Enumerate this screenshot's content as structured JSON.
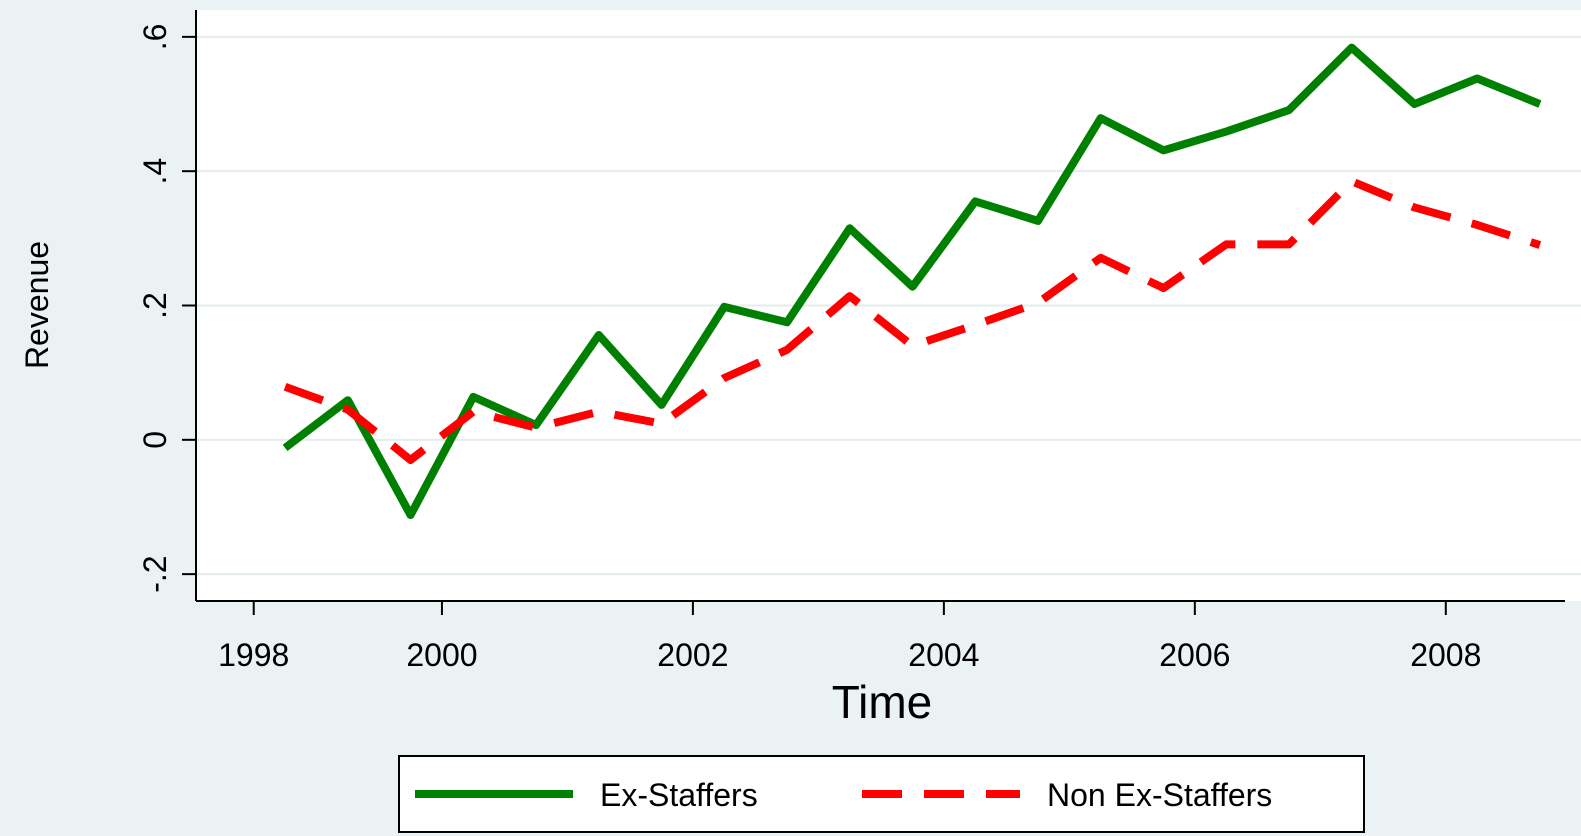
{
  "chart_data": {
    "type": "line",
    "x_label": "Time",
    "y_label": "Revenue",
    "x": [
      1998.75,
      1999.25,
      1999.75,
      2000.25,
      2000.75,
      2001.25,
      2001.75,
      2002.25,
      2002.75,
      2003.25,
      2003.75,
      2004.25,
      2004.75,
      2005.25,
      2005.75,
      2006.25,
      2006.75,
      2007.25,
      2007.75,
      2008.25,
      2008.75
    ],
    "series": [
      {
        "name": "Ex-Staffers",
        "color": "#008000",
        "dash": false,
        "values": [
          -0.012,
          0.059,
          -0.112,
          0.064,
          0.022,
          0.156,
          0.052,
          0.198,
          0.175,
          0.315,
          0.228,
          0.355,
          0.326,
          0.479,
          0.431,
          0.459,
          0.491,
          0.584,
          0.5,
          0.538,
          0.5
        ]
      },
      {
        "name": "Non Ex-Staffers",
        "color": "#ff0000",
        "dash": true,
        "values": [
          0.079,
          0.045,
          -0.03,
          0.042,
          0.018,
          0.042,
          0.024,
          0.092,
          0.134,
          0.214,
          0.14,
          0.171,
          0.204,
          0.271,
          0.226,
          0.291,
          0.291,
          0.385,
          0.346,
          0.32,
          0.29
        ]
      }
    ],
    "xlim": [
      1998.04,
      2008.95
    ],
    "xticks": [
      {
        "value": 1998.5,
        "label": "1998"
      },
      2000,
      2002,
      2004,
      2006,
      2008
    ],
    "ylim": [
      -0.24,
      0.64
    ],
    "yticks": [
      {
        "value": -0.2,
        "label": "-.2"
      },
      0,
      {
        "value": 0.2,
        "label": ".2"
      },
      {
        "value": 0.4,
        "label": ".4"
      },
      {
        "value": 0.6,
        "label": ".6"
      }
    ],
    "grid": true
  }
}
